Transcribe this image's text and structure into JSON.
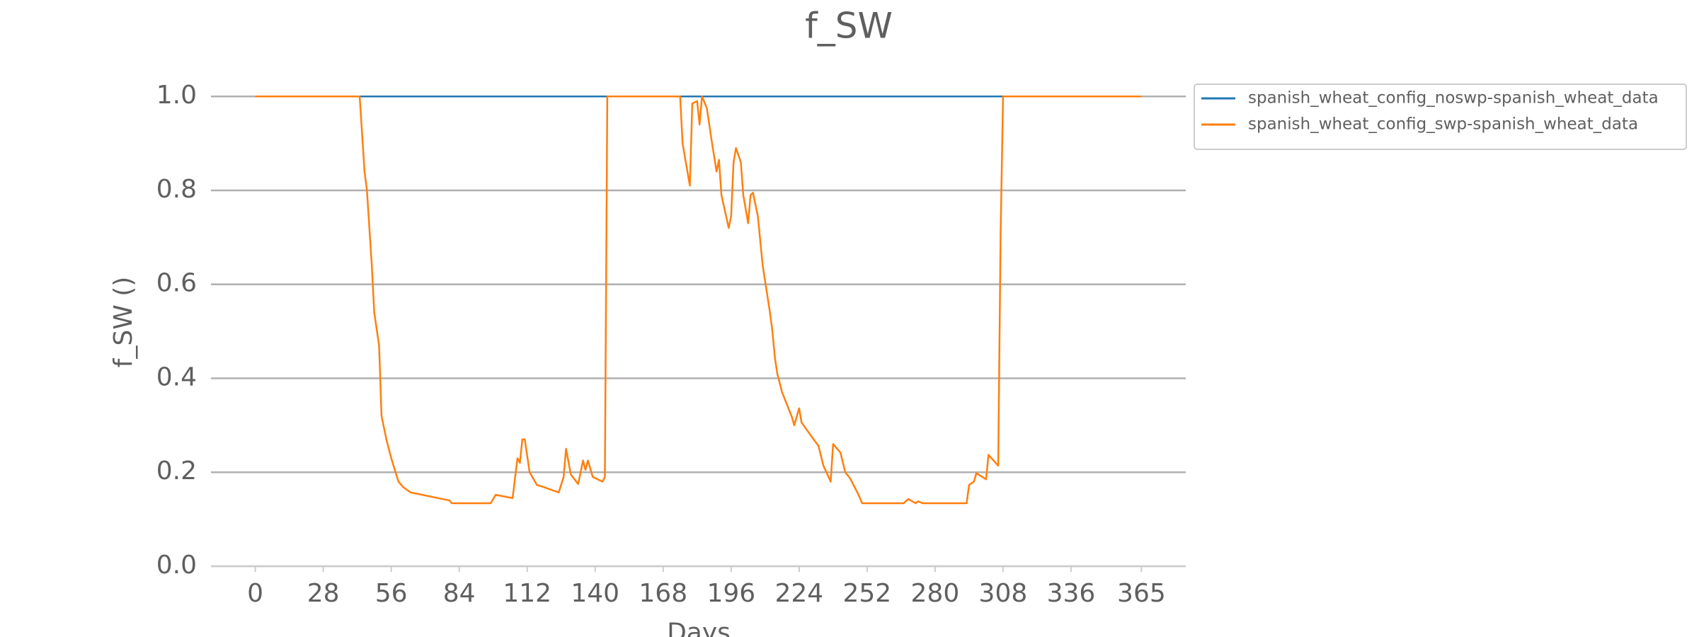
{
  "chart_data": {
    "type": "line",
    "title": "f_SW",
    "x_label": "Days",
    "y_label": "f_SW ()",
    "x": [
      0,
      43,
      45,
      46,
      47,
      48,
      49,
      51,
      52,
      54,
      56,
      58,
      59,
      61,
      64,
      80,
      81,
      97,
      99,
      106,
      108,
      109,
      110,
      111,
      113,
      116,
      119,
      125,
      127,
      128,
      130,
      133,
      135,
      136,
      137,
      139,
      143,
      144,
      145,
      175,
      176,
      177,
      179,
      180,
      182,
      183,
      184,
      186,
      188,
      190,
      191,
      192,
      195,
      196,
      197,
      198,
      200,
      201,
      203,
      204,
      205,
      207,
      209,
      212,
      213,
      214,
      215,
      217,
      218,
      221,
      222,
      224,
      225,
      229,
      232,
      234,
      237,
      238,
      241,
      243,
      245,
      248,
      250,
      267,
      269,
      272,
      273,
      275,
      293,
      294,
      296,
      297,
      301,
      302,
      306,
      307,
      308,
      365
    ],
    "series": [
      {
        "name": "spanish_wheat_config_noswp-spanish_wheat_data",
        "color": "#1f77b4",
        "values": [
          1,
          1,
          1,
          1,
          1,
          1,
          1,
          1,
          1,
          1,
          1,
          1,
          1,
          1,
          1,
          1,
          1,
          1,
          1,
          1,
          1,
          1,
          1,
          1,
          1,
          1,
          1,
          1,
          1,
          1,
          1,
          1,
          1,
          1,
          1,
          1,
          1,
          1,
          1,
          1,
          1,
          1,
          1,
          1,
          1,
          1,
          1,
          1,
          1,
          1,
          1,
          1,
          1,
          1,
          1,
          1,
          1,
          1,
          1,
          1,
          1,
          1,
          1,
          1,
          1,
          1,
          1,
          1,
          1,
          1,
          1,
          1,
          1,
          1,
          1,
          1,
          1,
          1,
          1,
          1,
          1,
          1,
          1,
          1,
          1,
          1,
          1,
          1,
          1,
          1,
          1,
          1,
          1,
          1,
          1,
          1,
          1,
          1
        ]
      },
      {
        "name": "spanish_wheat_config_swp-spanish_wheat_data",
        "color": "#ff7f0e",
        "values": [
          1,
          1,
          0.84,
          0.8,
          0.72,
          0.64,
          0.54,
          0.47,
          0.32,
          0.27,
          0.23,
          0.196,
          0.18,
          0.168,
          0.157,
          0.14,
          0.134,
          0.134,
          0.152,
          0.145,
          0.23,
          0.22,
          0.27,
          0.27,
          0.2,
          0.173,
          0.168,
          0.157,
          0.19,
          0.25,
          0.195,
          0.175,
          0.225,
          0.205,
          0.225,
          0.19,
          0.18,
          0.19,
          1,
          1,
          0.9,
          0.87,
          0.81,
          0.985,
          0.99,
          0.94,
          1,
          0.975,
          0.905,
          0.84,
          0.865,
          0.79,
          0.72,
          0.745,
          0.86,
          0.89,
          0.86,
          0.79,
          0.73,
          0.79,
          0.795,
          0.745,
          0.64,
          0.54,
          0.5,
          0.445,
          0.41,
          0.37,
          0.357,
          0.318,
          0.3,
          0.336,
          0.306,
          0.277,
          0.256,
          0.214,
          0.18,
          0.26,
          0.242,
          0.2,
          0.187,
          0.157,
          0.134,
          0.134,
          0.143,
          0.134,
          0.138,
          0.134,
          0.134,
          0.173,
          0.18,
          0.198,
          0.185,
          0.237,
          0.214,
          0.71,
          1,
          1
        ]
      }
    ],
    "xlim": [
      -18.25,
      383.25
    ],
    "ylim": [
      0,
      1.05
    ],
    "xticks": [
      0,
      28,
      56,
      84,
      112,
      140,
      168,
      196,
      224,
      252,
      280,
      308,
      336,
      365
    ],
    "yticks": [
      {
        "value": 0,
        "label": "0.0"
      },
      {
        "value": 0.2,
        "label": "0.2"
      },
      {
        "value": 0.4,
        "label": "0.4"
      },
      {
        "value": 0.6,
        "label": "0.6"
      },
      {
        "value": 0.8,
        "label": "0.8"
      },
      {
        "value": 1,
        "label": "1.0"
      }
    ],
    "grid": true,
    "legend": "right"
  }
}
